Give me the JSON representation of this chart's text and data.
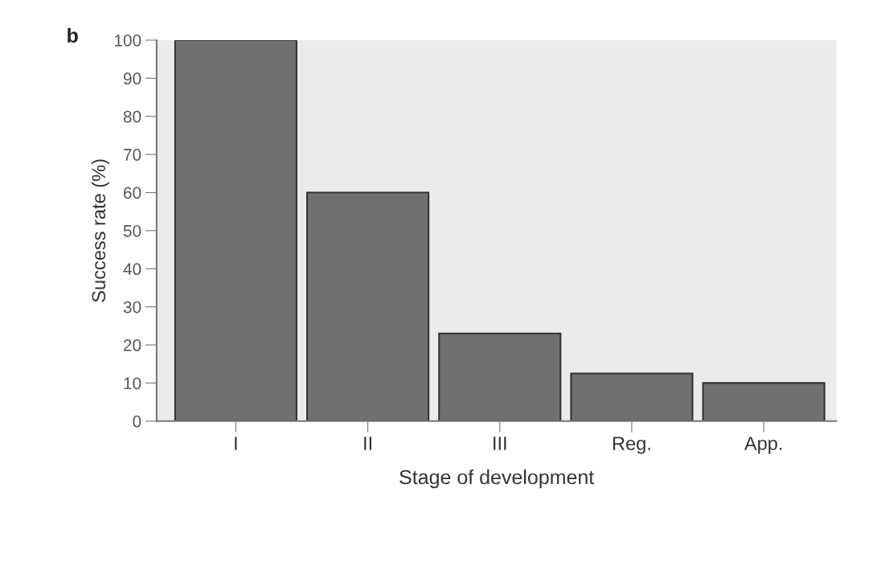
{
  "chart_data": {
    "type": "bar",
    "xlabel": "Stage of development",
    "ylabel": "Success rate (%)",
    "categories": [
      "I",
      "II",
      "III",
      "Reg.",
      "App."
    ],
    "values": [
      100,
      60,
      23,
      12.5,
      10
    ],
    "color": "#707070",
    "ylim": [
      0,
      100
    ],
    "yticks": [
      0,
      10,
      20,
      30,
      40,
      50,
      60,
      70,
      80,
      90,
      100
    ],
    "grid": false,
    "legend": false,
    "annotations": [
      "b"
    ]
  }
}
